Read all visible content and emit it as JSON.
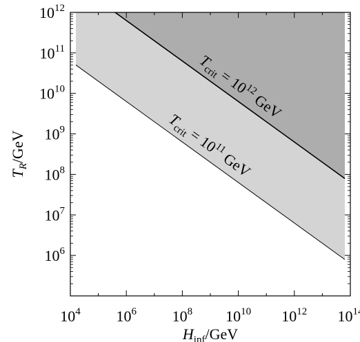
{
  "chart_data": {
    "type": "area",
    "xscale": "log",
    "yscale": "log",
    "xlim": [
      10000,
      100000000000000
    ],
    "ylim": [
      100000,
      1000000000000
    ],
    "grid": false,
    "legend": "none",
    "x_tick_values": [
      10000,
      1000000,
      100000000,
      10000000000,
      1000000000000,
      100000000000000
    ],
    "y_tick_values": [
      1000000,
      10000000,
      100000000,
      1000000000,
      10000000000,
      100000000000,
      1000000000000
    ],
    "x_tick_labels": [
      {
        "base": "10",
        "exp": "4"
      },
      {
        "base": "10",
        "exp": "6"
      },
      {
        "base": "10",
        "exp": "8"
      },
      {
        "base": "10",
        "exp": "10"
      },
      {
        "base": "10",
        "exp": "12"
      },
      {
        "base": "10",
        "exp": "14"
      }
    ],
    "y_tick_labels": [
      {
        "base": "10",
        "exp": "6"
      },
      {
        "base": "10",
        "exp": "7"
      },
      {
        "base": "10",
        "exp": "8"
      },
      {
        "base": "10",
        "exp": "9"
      },
      {
        "base": "10",
        "exp": "10"
      },
      {
        "base": "10",
        "exp": "11"
      },
      {
        "base": "10",
        "exp": "12"
      }
    ],
    "xlabel": {
      "symbol": "H",
      "subscript": "inf",
      "unit": "/GeV"
    },
    "ylabel": {
      "symbol": "T",
      "subscript": "R",
      "unit": "/GeV"
    },
    "series": [
      {
        "label": {
          "symbol": "T",
          "subscript": "crit",
          "rel": " = 10",
          "exp": "11",
          "unit": " GeV"
        },
        "fill": "#d4d4d4",
        "x": [
          10000,
          100000000000000
        ],
        "y": [
          63000000000,
          630000
        ]
      },
      {
        "label": {
          "symbol": "T",
          "subscript": "crit",
          "rel": " = 10",
          "exp": "12",
          "unit": " GeV"
        },
        "fill": "#adadad",
        "x": [
          10000,
          100000000000000
        ],
        "y": [
          6300000000000,
          63000000
        ]
      }
    ]
  }
}
